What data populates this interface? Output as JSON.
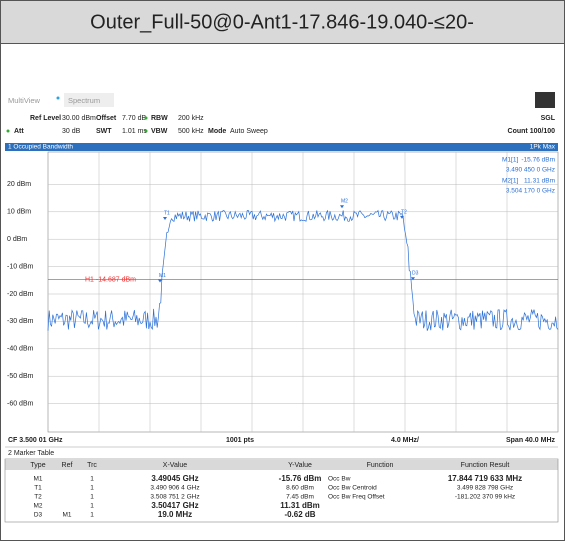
{
  "header": {
    "title": "Outer_Full-50@0-Ant1-17.846-19.040-≤20-"
  },
  "tabs": [
    "MultiView",
    "Spectrum"
  ],
  "settings": {
    "row1": [
      "Ref Level",
      "30.00 dBm",
      "Offset",
      "7.70 dB",
      "RBW",
      "200 kHz"
    ],
    "row1_right": "SGL",
    "row2": [
      "Att",
      "30 dB",
      "SWT",
      "1.01 ms",
      "VBW",
      "500 kHz",
      "Mode",
      "Auto Sweep"
    ],
    "row2_right": "Count 100/100"
  },
  "window": {
    "title": "1 Occupied Bandwidth",
    "trace": "1Pk Max",
    "marker_info": [
      [
        "M1[1]",
        "-15.76 dBm"
      ],
      [
        "",
        "3.490 450 0 GHz"
      ],
      [
        "M2[1]",
        "11.31 dBm"
      ],
      [
        "",
        "3.504 170 0 GHz"
      ]
    ],
    "y_labels": [
      "20 dBm",
      "10 dBm",
      "0 dBm",
      "-10 dBm",
      "-20 dBm",
      "-30 dBm",
      "-40 dBm",
      "-50 dBm",
      "-60 dBm"
    ],
    "hline_label": "H1 -14.687 dBm",
    "markers": [
      "T1",
      "M1",
      "M2",
      "T2",
      "D3"
    ],
    "footer": [
      "CF 3.500 01 GHz",
      "1001 pts",
      "4.0 MHz/",
      "Span 40.0 MHz"
    ]
  },
  "table": {
    "title": "2 Marker Table",
    "columns": [
      "Type",
      "Ref",
      "Trc",
      "X-Value",
      "Y-Value",
      "Function",
      "Function Result"
    ],
    "rows": [
      [
        "M1",
        "",
        "1",
        "3.49045 GHz",
        "-15.76 dBm",
        "Occ Bw",
        "17.844 719 633 MHz"
      ],
      [
        "T1",
        "",
        "1",
        "3.490 906 4 GHz",
        "8.60 dBm",
        "Occ Bw Centroid",
        "3.499 828 798 GHz"
      ],
      [
        "T2",
        "",
        "1",
        "3.508 751 2 GHz",
        "7.45 dBm",
        "Occ Bw Freq Offset",
        "-181.202 370 99 kHz"
      ],
      [
        "M2",
        "",
        "1",
        "3.50417 GHz",
        "11.31 dBm",
        "",
        ""
      ],
      [
        "D3",
        "M1",
        "1",
        "19.0 MHz",
        "-0.62 dB",
        "",
        ""
      ]
    ]
  }
}
